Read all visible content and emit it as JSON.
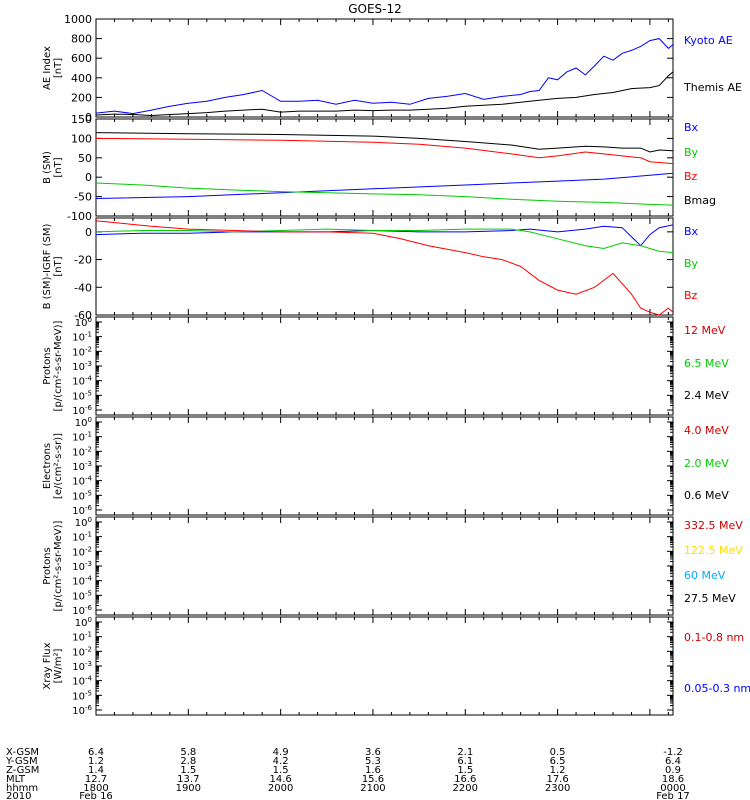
{
  "title": "GOES-12",
  "chart_data": [
    {
      "type": "line",
      "ylabel": [
        "AE Index",
        "[nT]"
      ],
      "ylim": [
        0,
        1000
      ],
      "yticks": [
        0,
        200,
        400,
        600,
        800,
        1000
      ],
      "xlim": [
        0,
        6.25
      ],
      "series": [
        {
          "name": "Kyoto AE",
          "color": "#0000ff",
          "x": [
            0,
            0.2,
            0.4,
            0.6,
            0.8,
            1.0,
            1.2,
            1.4,
            1.6,
            1.8,
            2.0,
            2.2,
            2.4,
            2.6,
            2.8,
            3.0,
            3.2,
            3.4,
            3.6,
            3.8,
            4.0,
            4.2,
            4.4,
            4.6,
            4.7,
            4.8,
            4.9,
            5.0,
            5.1,
            5.2,
            5.3,
            5.4,
            5.5,
            5.6,
            5.7,
            5.8,
            5.9,
            6.0,
            6.1,
            6.2,
            6.25
          ],
          "y": [
            40,
            60,
            35,
            70,
            110,
            140,
            160,
            200,
            230,
            270,
            160,
            160,
            170,
            130,
            170,
            140,
            150,
            130,
            190,
            210,
            240,
            180,
            210,
            230,
            260,
            270,
            400,
            380,
            460,
            500,
            430,
            520,
            620,
            580,
            650,
            680,
            720,
            780,
            800,
            700,
            740
          ]
        },
        {
          "name": "Themis AE",
          "color": "#000000",
          "x": [
            0,
            0.2,
            0.4,
            0.6,
            0.8,
            1.0,
            1.2,
            1.4,
            1.6,
            1.8,
            2.0,
            2.2,
            2.4,
            2.6,
            2.8,
            3.0,
            3.2,
            3.4,
            3.6,
            3.8,
            4.0,
            4.2,
            4.4,
            4.6,
            4.8,
            5.0,
            5.2,
            5.4,
            5.6,
            5.8,
            6.0,
            6.1,
            6.2,
            6.25
          ],
          "y": [
            20,
            30,
            25,
            15,
            25,
            35,
            45,
            60,
            70,
            80,
            50,
            60,
            60,
            60,
            70,
            65,
            70,
            70,
            80,
            90,
            110,
            120,
            130,
            150,
            170,
            190,
            200,
            230,
            250,
            290,
            300,
            320,
            420,
            460
          ]
        }
      ]
    },
    {
      "type": "line",
      "ylabel": [
        "B (SM)",
        "[nT]"
      ],
      "ylim": [
        -100,
        150
      ],
      "yticks": [
        -100,
        -50,
        0,
        50,
        100,
        150
      ],
      "xlim": [
        0,
        6.25
      ],
      "series": [
        {
          "name": "Bx",
          "color": "#0000ff",
          "x": [
            0,
            1,
            2,
            3,
            4,
            4.5,
            5,
            5.5,
            6,
            6.25
          ],
          "y": [
            -55,
            -50,
            -40,
            -30,
            -20,
            -15,
            -10,
            -5,
            5,
            10
          ]
        },
        {
          "name": "By",
          "color": "#00cc00",
          "x": [
            0,
            0.5,
            1,
            1.5,
            2,
            2.5,
            3,
            3.5,
            4,
            4.5,
            5,
            5.5,
            6,
            6.25
          ],
          "y": [
            -15,
            -20,
            -28,
            -33,
            -37,
            -40,
            -43,
            -45,
            -50,
            -57,
            -62,
            -65,
            -70,
            -72
          ]
        },
        {
          "name": "Bz",
          "color": "#ff0000",
          "x": [
            0,
            1,
            2,
            3,
            3.5,
            4,
            4.5,
            4.8,
            5,
            5.3,
            5.5,
            5.7,
            5.9,
            6.0,
            6.1,
            6.25
          ],
          "y": [
            100,
            98,
            95,
            90,
            85,
            75,
            60,
            50,
            55,
            65,
            60,
            55,
            50,
            40,
            38,
            35
          ]
        },
        {
          "name": "Bmag",
          "color": "#000000",
          "x": [
            0,
            1,
            2,
            3,
            3.5,
            4,
            4.5,
            4.8,
            5,
            5.3,
            5.5,
            5.7,
            5.9,
            6.0,
            6.1,
            6.25
          ],
          "y": [
            115,
            112,
            110,
            106,
            100,
            92,
            83,
            72,
            75,
            80,
            78,
            75,
            75,
            65,
            70,
            68
          ]
        }
      ]
    },
    {
      "type": "line",
      "ylabel": [
        "B (SM)-IGRF (SM)",
        "[nT]"
      ],
      "ylim": [
        -60,
        10
      ],
      "yticks": [
        -60,
        -40,
        -20,
        0
      ],
      "xlim": [
        0,
        6.25
      ],
      "series": [
        {
          "name": "Bx",
          "color": "#0000ff",
          "x": [
            0,
            0.5,
            1,
            1.5,
            2,
            2.5,
            3,
            3.5,
            4,
            4.5,
            4.7,
            5.0,
            5.3,
            5.5,
            5.7,
            5.9,
            6.0,
            6.1,
            6.25
          ],
          "y": [
            -2,
            -1,
            -1,
            0,
            0,
            0,
            1,
            0,
            0,
            1,
            2,
            0,
            2,
            4,
            3,
            -10,
            -2,
            3,
            5
          ]
        },
        {
          "name": "By",
          "color": "#00cc00",
          "x": [
            0,
            0.5,
            1,
            1.5,
            2,
            2.5,
            3,
            3.5,
            4,
            4.5,
            4.7,
            5.0,
            5.3,
            5.5,
            5.7,
            5.9,
            6.0,
            6.1,
            6.25
          ],
          "y": [
            0,
            1,
            1,
            0,
            1,
            2,
            1,
            1,
            2,
            2,
            0,
            -5,
            -10,
            -12,
            -8,
            -10,
            -12,
            -14,
            -15
          ]
        },
        {
          "name": "Bz",
          "color": "#ff0000",
          "x": [
            0,
            0.3,
            0.6,
            1,
            1.5,
            2,
            2.5,
            3,
            3.3,
            3.6,
            4,
            4.2,
            4.4,
            4.6,
            4.8,
            5.0,
            5.2,
            5.4,
            5.6,
            5.8,
            5.9,
            6.0,
            6.1,
            6.2,
            6.25
          ],
          "y": [
            8,
            6,
            4,
            2,
            1,
            0,
            0,
            -1,
            -5,
            -10,
            -15,
            -18,
            -20,
            -25,
            -35,
            -42,
            -45,
            -40,
            -30,
            -45,
            -55,
            -58,
            -60,
            -55,
            -58
          ]
        }
      ]
    },
    {
      "type": "line",
      "ylabel": [
        "Protons",
        "[p/(cm²-s-sr-MeV)]"
      ],
      "ylog": true,
      "ytick_exponents": [
        0,
        -1,
        -2,
        -3,
        -4,
        -5,
        -6
      ],
      "xlim": [
        0,
        6.25
      ],
      "series": [
        {
          "name": "12 MeV",
          "color": "#cc0000"
        },
        {
          "name": "6.5 MeV",
          "color": "#00cc00"
        },
        {
          "name": "2.4 MeV",
          "color": "#000000"
        }
      ]
    },
    {
      "type": "line",
      "ylabel": [
        "Electrons",
        "[e/(cm²-s-sr)]"
      ],
      "ylog": true,
      "ytick_exponents": [
        0,
        -1,
        -2,
        -3,
        -4,
        -5,
        -6
      ],
      "xlim": [
        0,
        6.25
      ],
      "series": [
        {
          "name": "4.0 MeV",
          "color": "#cc0000"
        },
        {
          "name": "2.0 MeV",
          "color": "#00cc00"
        },
        {
          "name": "0.6 MeV",
          "color": "#000000"
        }
      ]
    },
    {
      "type": "line",
      "ylabel": [
        "Protons",
        "[p/(cm²-s-sr-MeV)]"
      ],
      "ylog": true,
      "ytick_exponents": [
        0,
        -1,
        -2,
        -3,
        -4,
        -5,
        -6
      ],
      "xlim": [
        0,
        6.25
      ],
      "series": [
        {
          "name": "332.5 MeV",
          "color": "#cc0000"
        },
        {
          "name": "122.5 MeV",
          "color": "#ffdd00"
        },
        {
          "name": "60 MeV",
          "color": "#00aaff"
        },
        {
          "name": "27.5 MeV",
          "color": "#000000"
        }
      ]
    },
    {
      "type": "line",
      "ylabel": [
        "Xray  Flux",
        "[W/m²]"
      ],
      "ylog": true,
      "ytick_exponents": [
        0,
        -1,
        -2,
        -3,
        -4,
        -5,
        -6
      ],
      "xlim": [
        0,
        6.25
      ],
      "series": [
        {
          "name": "0.1-0.8 nm",
          "color": "#cc0000"
        },
        {
          "name": "0.05-0.3 nm",
          "color": "#0000ff"
        }
      ]
    }
  ],
  "ephemeris": {
    "row_labels": [
      "X-GSM",
      "Y-GSM",
      "Z-GSM",
      "MLT",
      "hhmm",
      "2010"
    ],
    "columns": [
      {
        "x": 0,
        "values": [
          "6.4",
          "1.2",
          "1.4",
          "12.7",
          "1800",
          "Feb 16"
        ]
      },
      {
        "x": 1,
        "values": [
          "5.8",
          "2.8",
          "1.5",
          "13.7",
          "1900",
          ""
        ]
      },
      {
        "x": 2,
        "values": [
          "4.9",
          "4.2",
          "1.5",
          "14.6",
          "2000",
          ""
        ]
      },
      {
        "x": 3,
        "values": [
          "3.6",
          "5.3",
          "1.6",
          "15.6",
          "2100",
          ""
        ]
      },
      {
        "x": 4,
        "values": [
          "2.1",
          "6.1",
          "1.5",
          "16.6",
          "2200",
          ""
        ]
      },
      {
        "x": 5,
        "values": [
          "0.5",
          "6.5",
          "1.2",
          "17.6",
          "2300",
          ""
        ]
      },
      {
        "x": 6.25,
        "values": [
          "-1.2",
          "6.4",
          "0.9",
          "18.6",
          "0000",
          "Feb 17"
        ]
      }
    ]
  }
}
